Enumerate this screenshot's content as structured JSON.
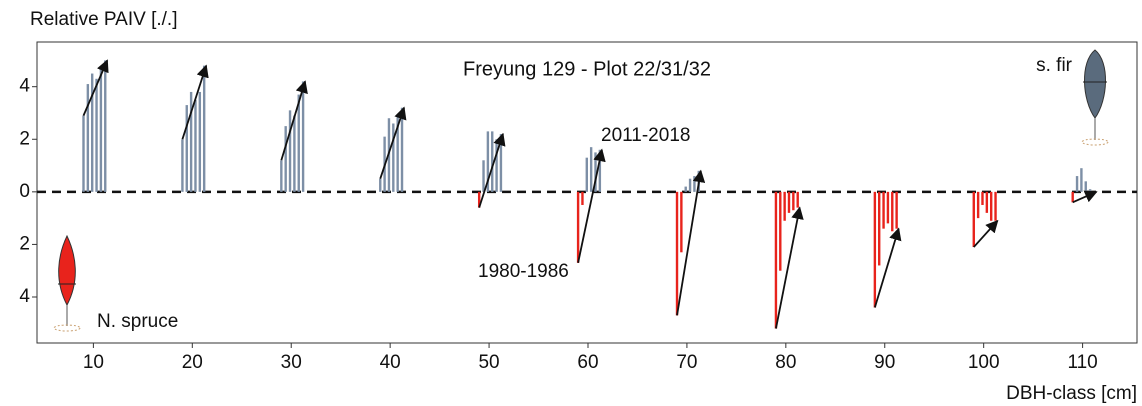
{
  "chart_data": {
    "type": "bar",
    "title": "Freyung 129 - Plot 22/31/32",
    "y_label": "Relative PAIV [./.]",
    "x_label": "DBH-class [cm]",
    "x": [
      10,
      20,
      30,
      40,
      50,
      60,
      70,
      80,
      90,
      100,
      110
    ],
    "values": [
      [
        2.9,
        4.1,
        4.5,
        4.3,
        4.7,
        5.0
      ],
      [
        2.0,
        3.3,
        3.8,
        3.5,
        3.8,
        4.8
      ],
      [
        1.2,
        2.5,
        3.1,
        2.9,
        3.7,
        4.2
      ],
      [
        0.5,
        2.1,
        2.8,
        2.6,
        2.9,
        3.2
      ],
      [
        -0.6,
        1.2,
        2.3,
        2.3,
        2.0,
        2.2
      ],
      [
        -2.7,
        -0.5,
        1.3,
        1.7,
        1.5,
        1.6
      ],
      [
        -4.7,
        -2.3,
        0.2,
        0.5,
        0.6,
        0.8
      ],
      [
        -5.2,
        -3.0,
        -1.1,
        -0.8,
        -0.7,
        -0.6
      ],
      [
        -4.4,
        -2.8,
        -1.4,
        -1.2,
        -1.5,
        -1.4
      ],
      [
        -2.1,
        -1.0,
        -0.5,
        -0.8,
        -1.1,
        -1.1
      ],
      [
        -0.4,
        0.6,
        0.9,
        0.4,
        0.1,
        0.0
      ]
    ],
    "colors": {
      "positive": "#7d8fa6",
      "negative": "#e8231c",
      "trend": "#111111"
    },
    "reference_line": 0,
    "xlim": [
      4.3,
      115.5
    ],
    "xticks": [
      10,
      20,
      30,
      40,
      50,
      60,
      70,
      80,
      90,
      100,
      110
    ],
    "ylim": [
      -5.75,
      5.7
    ],
    "yticks": [
      {
        "value": -4,
        "label": "4"
      },
      {
        "value": -2,
        "label": "2"
      },
      0,
      2,
      4
    ],
    "annotations": {
      "latest_period": "2011-2018",
      "first_period": "1980-1986",
      "fir": "s. fir",
      "spruce": "N. spruce"
    }
  }
}
